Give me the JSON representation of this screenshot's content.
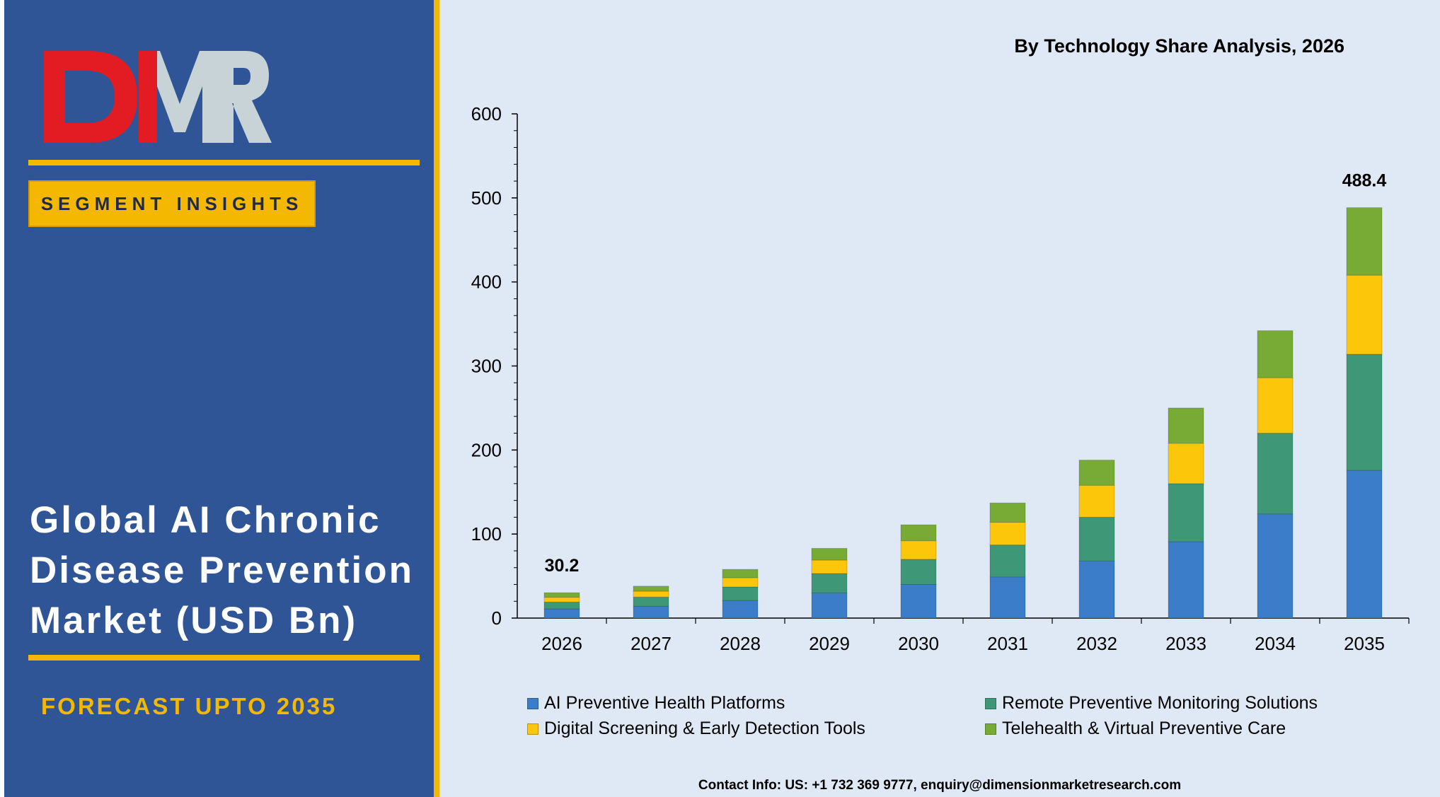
{
  "brand": {
    "logo_text": "DMR",
    "segment_label": "SEGMENT INSIGHTS",
    "market_title": "Global AI Chronic Disease Prevention Market (USD Bn)",
    "forecast_label": "FORECAST UPTO 2035",
    "colors": {
      "panel": "#2f5597",
      "accent": "#f5b800",
      "logo_red": "#e31b23",
      "logo_gray": "#c7d3d7"
    }
  },
  "contact": "Contact Info: US: +1 732 369 9777, enquiry@dimensionmarketresearch.com",
  "chart_data": {
    "type": "bar",
    "stacked": true,
    "title": "By Technology Share Analysis, 2026",
    "categories": [
      "2026",
      "2027",
      "2028",
      "2029",
      "2030",
      "2031",
      "2032",
      "2033",
      "2034",
      "2035"
    ],
    "series": [
      {
        "name": "AI Preventive Health Platforms",
        "color": "#3b7dc9",
        "values": [
          10.9,
          14,
          21,
          30,
          40,
          49,
          68,
          91,
          124,
          176
        ]
      },
      {
        "name": "Remote Preventive Monitoring Solutions",
        "color": "#3e9878",
        "values": [
          8.2,
          11,
          16,
          23,
          30,
          38,
          52,
          69,
          96,
          138
        ]
      },
      {
        "name": "Digital Screening & Early Detection Tools",
        "color": "#fcc60a",
        "values": [
          5.7,
          7,
          11,
          16,
          22,
          27,
          38,
          48,
          66,
          94
        ]
      },
      {
        "name": "Telehealth & Virtual Preventive Care",
        "color": "#78ab36",
        "values": [
          5.4,
          6,
          10,
          14,
          19,
          23,
          30,
          42,
          56,
          80.4
        ]
      }
    ],
    "data_labels": [
      {
        "category": "2026",
        "text": "30.2"
      },
      {
        "category": "2035",
        "text": "488.4"
      }
    ],
    "ylim": [
      0,
      600
    ],
    "yticks": [
      0,
      100,
      200,
      300,
      400,
      500,
      600
    ],
    "xlabel": "",
    "ylabel": "",
    "grid": false,
    "legend_position": "bottom"
  }
}
